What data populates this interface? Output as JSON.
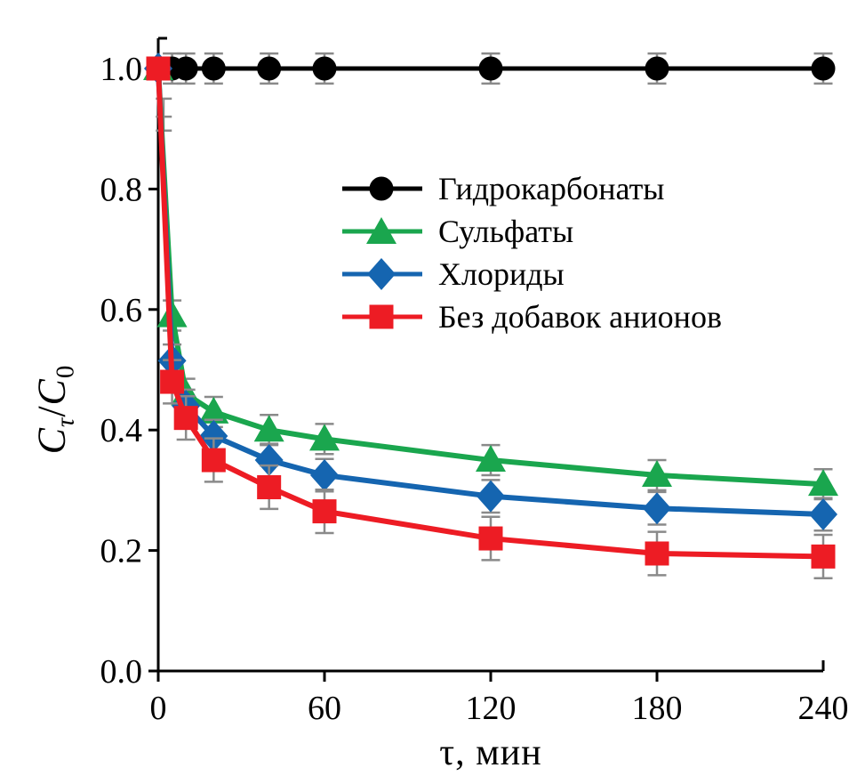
{
  "figure": {
    "background": "#ffffff",
    "axis_color": "#000000"
  },
  "chart_data": {
    "type": "line",
    "title": "",
    "xlabel": "τ, мин",
    "ylabel": "C_τ/C_0",
    "ylabel_parts": {
      "c1": "C",
      "sub1": "τ",
      "slash": "/",
      "c2": "C",
      "sub2": "0"
    },
    "x": [
      0,
      5,
      10,
      20,
      40,
      60,
      120,
      180,
      240
    ],
    "xlim": [
      0,
      240
    ],
    "ylim": [
      0.0,
      1.05
    ],
    "x_tick_values": [
      0,
      60,
      120,
      180,
      240
    ],
    "x_tick_labels": [
      "0",
      "60",
      "120",
      "180",
      "240"
    ],
    "y_tick_values": [
      0.0,
      0.2,
      0.4,
      0.6,
      0.8,
      1.0
    ],
    "y_tick_labels": [
      "0.0",
      "0.2",
      "0.4",
      "0.6",
      "0.8",
      "1.0"
    ],
    "grid": false,
    "legend_position": "inside upper center-right",
    "error_bar_color": "#8a8a8a",
    "series": [
      {
        "id": "hydrocarbonates",
        "name": "Гидрокарбонаты",
        "color": "#000000",
        "marker": "circle",
        "values": [
          1.0,
          1.0,
          1.0,
          1.0,
          1.0,
          1.0,
          1.0,
          1.0,
          1.0
        ],
        "error": 0.025
      },
      {
        "id": "sulfates",
        "name": "Сульфаты",
        "color": "#1AA64E",
        "marker": "triangle",
        "values": [
          1.0,
          0.59,
          0.46,
          0.43,
          0.4,
          0.385,
          0.35,
          0.325,
          0.31
        ],
        "error": 0.025
      },
      {
        "id": "chlorides",
        "name": "Хлориды",
        "color": "#1565B0",
        "marker": "diamond",
        "values": [
          1.0,
          0.515,
          0.44,
          0.39,
          0.35,
          0.325,
          0.29,
          0.27,
          0.26
        ],
        "error": 0.027
      },
      {
        "id": "no-anion-additives",
        "name": "Без добавок анионов",
        "color": "#ED1C24",
        "marker": "square",
        "values": [
          1.0,
          0.48,
          0.42,
          0.35,
          0.305,
          0.265,
          0.22,
          0.195,
          0.19
        ],
        "error": 0.036
      }
    ],
    "origin_error_whisker": {
      "tau": 2.0,
      "cap_values": [
        0.95,
        0.92,
        0.897
      ]
    }
  }
}
